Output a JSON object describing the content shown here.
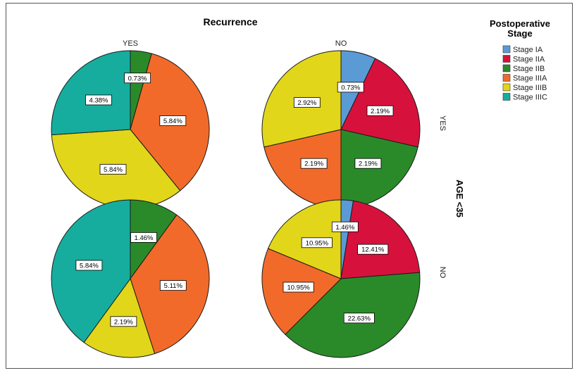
{
  "chart_data": {
    "type": "pie",
    "title": "Recurrence",
    "column_facet": {
      "values": [
        "YES",
        "NO"
      ]
    },
    "row_facet": {
      "title": "AGE <35",
      "values": [
        "YES",
        "NO"
      ]
    },
    "legend": {
      "title": [
        "Postoperative",
        "Stage"
      ],
      "placement": "top-right",
      "entries": [
        {
          "name": "Stage IA",
          "color": "#5b9bd5"
        },
        {
          "name": "Stage IIA",
          "color": "#d6123c"
        },
        {
          "name": "Stage IIB",
          "color": "#2a8a2a"
        },
        {
          "name": "Stage IIIA",
          "color": "#f26a2a"
        },
        {
          "name": "Stage IIIB",
          "color": "#e2d61a"
        },
        {
          "name": "Stage IIIC",
          "color": "#16ad9e"
        }
      ]
    },
    "pies": [
      {
        "row": "YES",
        "col": "YES",
        "slices": [
          {
            "stage": "Stage IIB",
            "value": 0.73,
            "label": "0.73%"
          },
          {
            "stage": "Stage IIIA",
            "value": 5.84,
            "label": "5.84%"
          },
          {
            "stage": "Stage IIIB",
            "value": 5.84,
            "label": "5.84%"
          },
          {
            "stage": "Stage IIIC",
            "value": 4.38,
            "label": "4.38%"
          }
        ]
      },
      {
        "row": "YES",
        "col": "NO",
        "slices": [
          {
            "stage": "Stage IA",
            "value": 0.73,
            "label": "0.73%"
          },
          {
            "stage": "Stage IIA",
            "value": 2.19,
            "label": "2.19%"
          },
          {
            "stage": "Stage IIB",
            "value": 2.19,
            "label": "2.19%"
          },
          {
            "stage": "Stage IIIA",
            "value": 2.19,
            "label": "2.19%"
          },
          {
            "stage": "Stage IIIB",
            "value": 2.92,
            "label": "2.92%"
          }
        ]
      },
      {
        "row": "NO",
        "col": "YES",
        "slices": [
          {
            "stage": "Stage IIB",
            "value": 1.46,
            "label": "1.46%"
          },
          {
            "stage": "Stage IIIA",
            "value": 5.11,
            "label": "5.11%"
          },
          {
            "stage": "Stage IIIB",
            "value": 2.19,
            "label": "2.19%"
          },
          {
            "stage": "Stage IIIC",
            "value": 5.84,
            "label": "5.84%"
          }
        ]
      },
      {
        "row": "NO",
        "col": "NO",
        "slices": [
          {
            "stage": "Stage IA",
            "value": 1.46,
            "label": "1.46%"
          },
          {
            "stage": "Stage IIA",
            "value": 12.41,
            "label": "12.41%"
          },
          {
            "stage": "Stage IIB",
            "value": 22.63,
            "label": "22.63%"
          },
          {
            "stage": "Stage IIIA",
            "value": 10.95,
            "label": "10.95%"
          },
          {
            "stage": "Stage IIIB",
            "value": 10.95,
            "label": "10.95%"
          }
        ]
      }
    ]
  }
}
